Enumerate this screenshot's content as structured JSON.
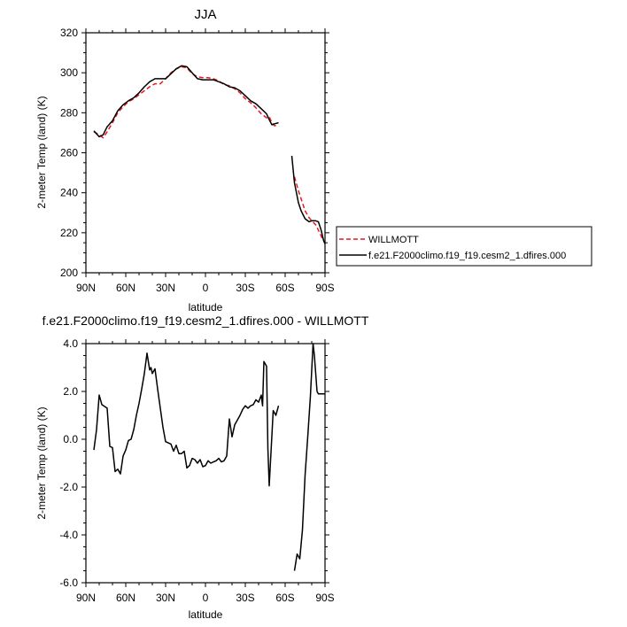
{
  "chart_data": [
    {
      "type": "line",
      "title": "JJA",
      "xlabel": "latitude",
      "ylabel": "2-meter Temp (land) (K)",
      "xlim": [
        90,
        -90
      ],
      "ylim": [
        200,
        320
      ],
      "x_ticks": [
        {
          "value": 90,
          "label": "90N"
        },
        {
          "value": 60,
          "label": "60N"
        },
        {
          "value": 30,
          "label": "30N"
        },
        {
          "value": 0,
          "label": "0"
        },
        {
          "value": -30,
          "label": "30S"
        },
        {
          "value": -60,
          "label": "60S"
        },
        {
          "value": -90,
          "label": "90S"
        }
      ],
      "y_ticks": [
        {
          "value": 320,
          "label": "320"
        },
        {
          "value": 300,
          "label": "300"
        },
        {
          "value": 280,
          "label": "280"
        },
        {
          "value": 260,
          "label": "260"
        },
        {
          "value": 240,
          "label": "240"
        },
        {
          "value": 220,
          "label": "220"
        },
        {
          "value": 200,
          "label": "200"
        }
      ],
      "legend_position": "outside-right",
      "series": [
        {
          "name": "WILLMOTT",
          "color": "#e8191e",
          "dashed": true,
          "segments": [
            [
              [
                84,
                270.5
              ],
              [
                80,
                269
              ],
              [
                77,
                267.5
              ],
              [
                74,
                270.5
              ],
              [
                70,
                275
              ],
              [
                66,
                280
              ],
              [
                62,
                283
              ],
              [
                58,
                285.5
              ],
              [
                54,
                287
              ],
              [
                50,
                289
              ],
              [
                46,
                291
              ],
              [
                42,
                293
              ],
              [
                38,
                294.5
              ],
              [
                34,
                294.5
              ],
              [
                30,
                297
              ],
              [
                26,
                300
              ],
              [
                22,
                302
              ],
              [
                18,
                303
              ],
              [
                14,
                302.5
              ],
              [
                10,
                299.5
              ],
              [
                6,
                298
              ],
              [
                2,
                297.5
              ],
              [
                -2,
                297.5
              ],
              [
                -6,
                297
              ],
              [
                -10,
                296
              ],
              [
                -14,
                294
              ],
              [
                -18,
                293.5
              ],
              [
                -22,
                292
              ],
              [
                -26,
                290
              ],
              [
                -30,
                287
              ],
              [
                -34,
                285
              ],
              [
                -38,
                282.5
              ],
              [
                -42,
                279.5
              ],
              [
                -46,
                277.5
              ],
              [
                -48,
                278
              ],
              [
                -50,
                275
              ],
              [
                -52,
                273.5
              ],
              [
                -55,
                274
              ]
            ],
            [
              [
                -67,
                248
              ],
              [
                -70,
                241
              ],
              [
                -72,
                237
              ],
              [
                -75,
                231
              ],
              [
                -78,
                227.5
              ],
              [
                -80,
                226
              ],
              [
                -83,
                224
              ],
              [
                -86,
                220
              ],
              [
                -88,
                217
              ],
              [
                -90,
                215
              ]
            ]
          ]
        },
        {
          "name": "f.e21.F2000climo.f19_f19.cesm2_1.dfires.000",
          "color": "#000000",
          "dashed": false,
          "segments": [
            [
              [
                84,
                271
              ],
              [
                80,
                268
              ],
              [
                77,
                269
              ],
              [
                74,
                273
              ],
              [
                70,
                276
              ],
              [
                66,
                281
              ],
              [
                62,
                284
              ],
              [
                58,
                286
              ],
              [
                54,
                287.5
              ],
              [
                50,
                290
              ],
              [
                46,
                293
              ],
              [
                42,
                295.5
              ],
              [
                38,
                297
              ],
              [
                34,
                297
              ],
              [
                30,
                297
              ],
              [
                26,
                299.5
              ],
              [
                22,
                302
              ],
              [
                18,
                303.5
              ],
              [
                14,
                303
              ],
              [
                10,
                300
              ],
              [
                6,
                297
              ],
              [
                2,
                296.5
              ],
              [
                -2,
                296.5
              ],
              [
                -6,
                296.5
              ],
              [
                -10,
                295.5
              ],
              [
                -14,
                294.5
              ],
              [
                -18,
                293
              ],
              [
                -22,
                292.5
              ],
              [
                -26,
                291
              ],
              [
                -30,
                288.5
              ],
              [
                -34,
                286
              ],
              [
                -38,
                284.5
              ],
              [
                -42,
                282
              ],
              [
                -46,
                279.5
              ],
              [
                -48,
                276.5
              ],
              [
                -50,
                274
              ],
              [
                -52,
                274.5
              ],
              [
                -55,
                275
              ]
            ],
            [
              [
                -65,
                258.5
              ],
              [
                -67,
                245
              ],
              [
                -70,
                235
              ],
              [
                -72,
                231
              ],
              [
                -75,
                227
              ],
              [
                -78,
                225.5
              ],
              [
                -80,
                226
              ],
              [
                -83,
                226
              ],
              [
                -85,
                225.5
              ],
              [
                -87,
                221.5
              ],
              [
                -89,
                216
              ],
              [
                -90,
                214.5
              ]
            ]
          ]
        }
      ]
    },
    {
      "type": "line",
      "title": "f.e21.F2000climo.f19_f19.cesm2_1.dfires.000 - WILLMOTT",
      "xlabel": "latitude",
      "ylabel": "2-meter Temp (land) (K)",
      "xlim": [
        90,
        -90
      ],
      "ylim": [
        -6,
        4
      ],
      "x_ticks": [
        {
          "value": 90,
          "label": "90N"
        },
        {
          "value": 60,
          "label": "60N"
        },
        {
          "value": 30,
          "label": "30N"
        },
        {
          "value": 0,
          "label": "0"
        },
        {
          "value": -30,
          "label": "30S"
        },
        {
          "value": -60,
          "label": "60S"
        },
        {
          "value": -90,
          "label": "90S"
        }
      ],
      "y_ticks": [
        {
          "value": 4,
          "label": "4.0"
        },
        {
          "value": 2,
          "label": "2.0"
        },
        {
          "value": 0,
          "label": "0.0"
        },
        {
          "value": -2,
          "label": "-2.0"
        },
        {
          "value": -4,
          "label": "-4.0"
        },
        {
          "value": -6,
          "label": "-6.0"
        }
      ],
      "series": [
        {
          "color": "#000000",
          "dashed": false,
          "segments": [
            [
              [
                84,
                -0.45
              ],
              [
                82,
                0.4
              ],
              [
                80,
                1.85
              ],
              [
                78,
                1.45
              ],
              [
                74,
                1.3
              ],
              [
                72,
                -0.3
              ],
              [
                70,
                -0.35
              ],
              [
                68,
                -1.35
              ],
              [
                66,
                -1.25
              ],
              [
                64,
                -1.45
              ],
              [
                62,
                -0.7
              ],
              [
                60,
                -0.45
              ],
              [
                58,
                -0.05
              ],
              [
                56,
                0
              ],
              [
                54,
                0.4
              ],
              [
                52,
                1.0
              ],
              [
                50,
                1.5
              ],
              [
                48,
                2.1
              ],
              [
                46,
                2.75
              ],
              [
                44,
                3.6
              ],
              [
                42,
                2.9
              ],
              [
                41,
                3.0
              ],
              [
                40,
                2.75
              ],
              [
                38,
                2.95
              ],
              [
                36,
                2.1
              ],
              [
                34,
                1.3
              ],
              [
                32,
                0.5
              ],
              [
                30,
                -0.1
              ],
              [
                28,
                -0.15
              ],
              [
                26,
                -0.2
              ],
              [
                24,
                -0.5
              ],
              [
                22,
                -0.25
              ],
              [
                20,
                -0.6
              ],
              [
                18,
                -0.6
              ],
              [
                16,
                -0.5
              ],
              [
                14,
                -1.2
              ],
              [
                12,
                -1.1
              ],
              [
                10,
                -0.8
              ],
              [
                8,
                -0.85
              ],
              [
                6,
                -1.0
              ],
              [
                4,
                -0.85
              ],
              [
                2,
                -1.15
              ],
              [
                0,
                -1.1
              ],
              [
                -2,
                -0.9
              ],
              [
                -4,
                -1.0
              ],
              [
                -6,
                -0.95
              ],
              [
                -8,
                -0.9
              ],
              [
                -10,
                -0.8
              ],
              [
                -12,
                -0.95
              ],
              [
                -14,
                -0.9
              ],
              [
                -16,
                -0.7
              ],
              [
                -18,
                0.85
              ],
              [
                -20,
                0.1
              ],
              [
                -22,
                0.6
              ],
              [
                -24,
                0.8
              ],
              [
                -26,
                1.0
              ],
              [
                -28,
                1.25
              ],
              [
                -30,
                1.4
              ],
              [
                -32,
                1.3
              ],
              [
                -34,
                1.4
              ],
              [
                -36,
                1.45
              ],
              [
                -38,
                1.65
              ],
              [
                -40,
                1.55
              ],
              [
                -42,
                1.85
              ],
              [
                -43,
                1.4
              ],
              [
                -44,
                3.25
              ],
              [
                -46,
                3.05
              ],
              [
                -47,
                -0.4
              ],
              [
                -48,
                -1.95
              ],
              [
                -50,
                0.15
              ],
              [
                -51,
                1.2
              ],
              [
                -53,
                1.0
              ],
              [
                -55,
                1.4
              ]
            ],
            [
              [
                -67,
                -5.5
              ],
              [
                -69,
                -4.8
              ],
              [
                -71,
                -5.0
              ],
              [
                -73,
                -3.8
              ],
              [
                -75,
                -1.5
              ],
              [
                -77,
                0.1
              ],
              [
                -79,
                1.8
              ],
              [
                -81,
                4.0
              ],
              [
                -82,
                3.5
              ],
              [
                -84,
                2.0
              ],
              [
                -85,
                1.9
              ],
              [
                -90,
                1.9
              ]
            ]
          ]
        }
      ]
    }
  ]
}
